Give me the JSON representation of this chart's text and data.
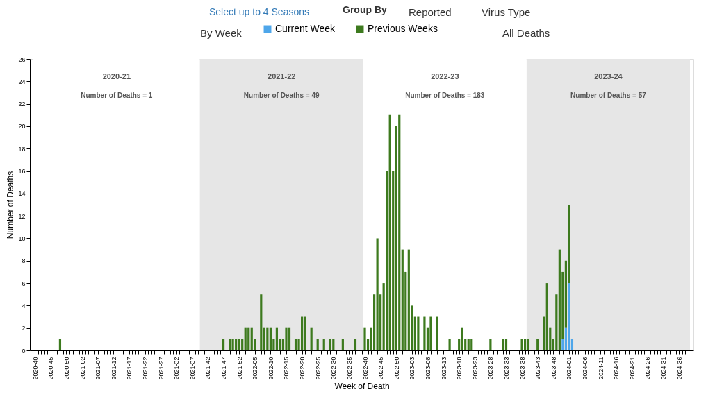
{
  "chart_data": {
    "type": "bar",
    "stacked": true,
    "xlabel": "Week of Death",
    "ylabel": "Number of Deaths",
    "categories": [
      "2020-40",
      null,
      null,
      null,
      null,
      "2020-45",
      null,
      null,
      null,
      null,
      "2020-50",
      null,
      null,
      null,
      null,
      "2021-02",
      null,
      null,
      null,
      null,
      "2021-07",
      null,
      null,
      null,
      null,
      "2021-12",
      null,
      null,
      null,
      null,
      "2021-17",
      null,
      null,
      null,
      null,
      "2021-22",
      null,
      null,
      null,
      null,
      "2021-27",
      null,
      null,
      null,
      null,
      "2021-32",
      null,
      null,
      null,
      null,
      "2021-37",
      null,
      null,
      null,
      null,
      "2021-42",
      null,
      null,
      null,
      null,
      "2021-47",
      null,
      null,
      null,
      null,
      "2021-52",
      null,
      null,
      null,
      null,
      "2022-05",
      null,
      null,
      null,
      null,
      "2022-10",
      null,
      null,
      null,
      null,
      "2022-15",
      null,
      null,
      null,
      null,
      "2022-20",
      null,
      null,
      null,
      null,
      "2022-25",
      null,
      null,
      null,
      null,
      "2022-30",
      null,
      null,
      null,
      null,
      "2022-35",
      null,
      null,
      null,
      null,
      "2022-40",
      null,
      null,
      null,
      null,
      "2022-45",
      null,
      null,
      null,
      null,
      "2022-50",
      null,
      null,
      null,
      null,
      "2023-03",
      null,
      null,
      null,
      null,
      "2023-08",
      null,
      null,
      null,
      null,
      "2023-13",
      null,
      null,
      null,
      null,
      "2023-18",
      null,
      null,
      null,
      null,
      "2023-23",
      null,
      null,
      null,
      null,
      "2023-28",
      null,
      null,
      null,
      null,
      "2023-33",
      null,
      null,
      null,
      null,
      "2023-38",
      null,
      null,
      null,
      null,
      "2023-43",
      null,
      null,
      null,
      null,
      "2023-48",
      null,
      null,
      null,
      null,
      "2024-01",
      null,
      null,
      null,
      null,
      "2024-06",
      null,
      null,
      null,
      null,
      "2024-11",
      null,
      null,
      null,
      null,
      "2024-16",
      null,
      null,
      null,
      null,
      "2024-21",
      null,
      null,
      null,
      null,
      "2024-26",
      null,
      null,
      null,
      null,
      "2024-31",
      null,
      null,
      null,
      null,
      "2024-36",
      null,
      null,
      null
    ],
    "series": [
      {
        "name": "Current Week",
        "color": "#4ea6ea",
        "values": [
          0,
          0,
          0,
          0,
          0,
          0,
          0,
          0,
          0,
          0,
          0,
          0,
          0,
          0,
          0,
          0,
          0,
          0,
          0,
          0,
          0,
          0,
          0,
          0,
          0,
          0,
          0,
          0,
          0,
          0,
          0,
          0,
          0,
          0,
          0,
          0,
          0,
          0,
          0,
          0,
          0,
          0,
          0,
          0,
          0,
          0,
          0,
          0,
          0,
          0,
          0,
          0,
          0,
          0,
          0,
          0,
          0,
          0,
          0,
          0,
          0,
          0,
          0,
          0,
          0,
          0,
          0,
          0,
          0,
          0,
          0,
          0,
          0,
          0,
          0,
          0,
          0,
          0,
          0,
          0,
          0,
          0,
          0,
          0,
          0,
          0,
          0,
          0,
          0,
          0,
          0,
          0,
          0,
          0,
          0,
          0,
          0,
          0,
          0,
          0,
          0,
          0,
          0,
          0,
          0,
          0,
          0,
          0,
          0,
          0,
          0,
          0,
          0,
          0,
          0,
          0,
          0,
          0,
          0,
          0,
          0,
          0,
          0,
          0,
          0,
          0,
          0,
          0,
          0,
          0,
          0,
          0,
          0,
          0,
          0,
          0,
          0,
          0,
          0,
          0,
          0,
          0,
          0,
          0,
          0,
          0,
          0,
          0,
          0,
          0,
          0,
          0,
          0,
          0,
          0,
          0,
          0,
          0,
          0,
          0,
          0,
          0,
          0,
          0,
          0,
          0,
          0,
          0,
          1,
          2,
          6,
          1,
          0,
          0,
          0,
          0,
          0,
          0,
          0,
          0,
          0,
          0,
          0,
          0,
          0,
          0,
          0,
          0,
          0,
          0,
          0,
          0,
          0,
          0,
          0,
          0,
          0,
          0,
          0,
          0,
          0,
          0,
          0,
          0,
          0,
          0,
          0,
          0,
          0
        ]
      },
      {
        "name": "Previous Weeks",
        "color": "#3d7a1e",
        "values": [
          0,
          0,
          0,
          0,
          0,
          0,
          0,
          0,
          1,
          0,
          0,
          0,
          0,
          0,
          0,
          0,
          0,
          0,
          0,
          0,
          0,
          0,
          0,
          0,
          0,
          0,
          0,
          0,
          0,
          0,
          0,
          0,
          0,
          0,
          0,
          0,
          0,
          0,
          0,
          0,
          0,
          0,
          0,
          0,
          0,
          0,
          0,
          0,
          0,
          0,
          0,
          0,
          0,
          0,
          0,
          0,
          0,
          0,
          0,
          0,
          1,
          0,
          1,
          1,
          1,
          1,
          1,
          2,
          2,
          2,
          1,
          0,
          5,
          2,
          2,
          2,
          1,
          2,
          1,
          1,
          2,
          2,
          0,
          1,
          1,
          3,
          3,
          0,
          2,
          0,
          1,
          0,
          1,
          0,
          1,
          1,
          0,
          0,
          1,
          0,
          0,
          0,
          1,
          0,
          0,
          2,
          1,
          2,
          5,
          10,
          5,
          6,
          16,
          21,
          16,
          20,
          21,
          9,
          7,
          9,
          4,
          3,
          3,
          0,
          3,
          2,
          3,
          0,
          3,
          0,
          0,
          0,
          1,
          0,
          0,
          1,
          2,
          1,
          1,
          1,
          0,
          0,
          0,
          0,
          0,
          1,
          0,
          0,
          0,
          1,
          1,
          0,
          0,
          0,
          0,
          1,
          1,
          1,
          0,
          0,
          1,
          0,
          3,
          6,
          2,
          1,
          5,
          9,
          6,
          6,
          7,
          0,
          0,
          0,
          0,
          0,
          0,
          0,
          0,
          0,
          0,
          0,
          0,
          0,
          0,
          0,
          0,
          0,
          0,
          0,
          0,
          0,
          0,
          0,
          0,
          0,
          0,
          0,
          0,
          0,
          0,
          0,
          0,
          0,
          0,
          0,
          0,
          0,
          0
        ]
      }
    ],
    "ylim": [
      0,
      26
    ],
    "yticks": [
      0,
      2,
      4,
      6,
      8,
      10,
      12,
      14,
      16,
      18,
      20,
      22,
      24,
      26
    ],
    "legend": "top",
    "bands": [
      {
        "axis": "x",
        "from": "2020-40",
        "to": "2021-39",
        "label": "2020-21",
        "color": "#ffffff"
      },
      {
        "axis": "x",
        "from": "2021-40",
        "to": "2022-39",
        "label": "2021-22",
        "color": "#e6e6e6"
      },
      {
        "axis": "x",
        "from": "2022-40",
        "to": "2023-39",
        "label": "2022-23",
        "color": "#ffffff"
      },
      {
        "axis": "x",
        "from": "2023-40",
        "to": "2024-39",
        "label": "2023-24",
        "color": "#e6e6e6"
      }
    ],
    "annotations": [
      "Select up to 4 Seasons",
      "Group By",
      "Reported",
      "Virus Type",
      "By Week",
      "All Deaths",
      "Number of Deaths = 1",
      "Number of Deaths = 49",
      "Number of Deaths = 183",
      "Number of Deaths = 57"
    ]
  }
}
